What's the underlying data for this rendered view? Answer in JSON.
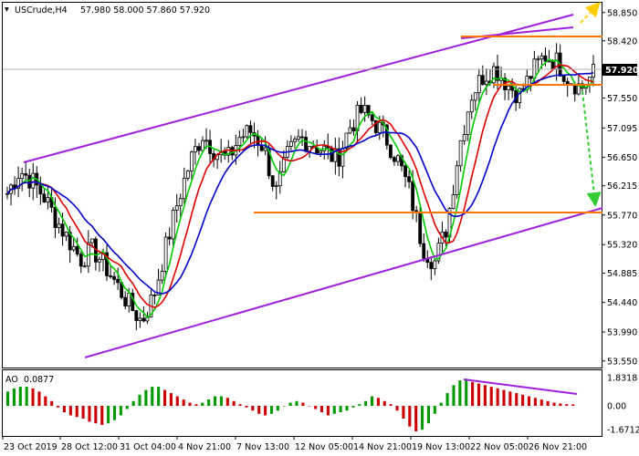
{
  "header": {
    "symbol": "USCrude,H4",
    "ohlc": "57.980 58.000 57.860 57.920"
  },
  "colors": {
    "background": "#ffffff",
    "frame": "#000000",
    "candle": "#000000",
    "ma_fast": "#00cc00",
    "ma_mid": "#dd0000",
    "ma_slow": "#0000cc",
    "channel": "#a020e0",
    "level": "#ff7700",
    "arrow_up": "#ffcc00",
    "arrow_down": "#33cc33",
    "ao_up": "#009900",
    "ao_down": "#cc0000"
  },
  "chart_data": [
    {
      "type": "candlestick",
      "symbol": "USCrude",
      "timeframe": "H4",
      "price_axis": {
        "ticks": [
          58.85,
          58.42,
          57.985,
          57.55,
          57.095,
          56.65,
          56.215,
          55.77,
          55.32,
          54.885,
          54.44,
          53.99,
          53.55
        ],
        "current_price": "57.920"
      },
      "time_axis": {
        "ticks": [
          "23 Oct 2019",
          "28 Oct 12:00",
          "31 Oct 04:00",
          "4 Nov 21:00",
          "7 Nov 13:00",
          "12 Nov 05:00",
          "14 Nov 21:00",
          "19 Nov 13:00",
          "22 Nov 05:00",
          "26 Nov 21:00"
        ]
      },
      "closes": [
        56.1,
        56.45,
        56.3,
        56.05,
        55.7,
        55.4,
        55.1,
        55.25,
        55.0,
        54.7,
        54.4,
        54.15,
        54.55,
        55.3,
        56.0,
        56.6,
        57.0,
        56.75,
        56.6,
        56.95,
        57.05,
        56.8,
        56.1,
        56.7,
        56.95,
        56.85,
        56.75,
        56.6,
        57.1,
        57.35,
        57.2,
        56.95,
        56.6,
        56.1,
        55.3,
        55.05,
        55.6,
        56.8,
        57.6,
        57.9,
        58.0,
        57.75,
        57.6,
        57.95,
        58.2,
        58.1,
        57.85,
        57.7,
        57.92
      ],
      "indicators": [
        {
          "name": "MA fast",
          "color": "green"
        },
        {
          "name": "MA mid",
          "color": "red"
        },
        {
          "name": "MA slow",
          "color": "blue"
        }
      ],
      "ylim": [
        53.45,
        59.0
      ],
      "levels": [
        57.72,
        55.78
      ],
      "channel": {
        "upper": [
          [
            0.04,
            56.55
          ],
          [
            0.94,
            58.98
          ]
        ],
        "lower": [
          [
            0.14,
            53.63
          ],
          [
            0.97,
            55.85
          ]
        ]
      }
    },
    {
      "type": "bar",
      "title": "AO",
      "value_label": "0.0877",
      "axis_ticks": [
        "1.8318",
        "0.00",
        "-1.6712"
      ],
      "values": [
        0.9,
        1.1,
        1.2,
        1.2,
        1.1,
        0.9,
        0.6,
        0.3,
        -0.1,
        -0.4,
        -0.6,
        -0.7,
        -0.8,
        -1.0,
        -1.1,
        -1.2,
        -1.1,
        -0.9,
        -0.6,
        -0.2,
        0.3,
        0.7,
        1.0,
        1.2,
        1.2,
        1.0,
        0.8,
        0.6,
        0.4,
        0.2,
        0.1,
        0.2,
        0.4,
        0.6,
        0.6,
        0.5,
        0.3,
        0.1,
        -0.1,
        -0.3,
        -0.5,
        -0.6,
        -0.5,
        -0.3,
        0.0,
        0.2,
        0.3,
        0.2,
        0.0,
        -0.2,
        -0.4,
        -0.6,
        -0.5,
        -0.4,
        -0.3,
        -0.1,
        0.1,
        0.3,
        0.6,
        0.5,
        0.3,
        0.1,
        -0.3,
        -0.8,
        -1.3,
        -1.6,
        -1.5,
        -1.1,
        -0.5,
        0.2,
        0.8,
        1.3,
        1.6,
        1.7,
        1.5,
        1.4,
        1.3,
        1.2,
        1.1,
        1.0,
        0.9,
        0.8,
        0.7,
        0.6,
        0.5,
        0.4,
        0.3,
        0.2,
        0.15,
        0.1,
        0.09
      ],
      "ylim": [
        -1.95,
        1.95
      ]
    }
  ]
}
